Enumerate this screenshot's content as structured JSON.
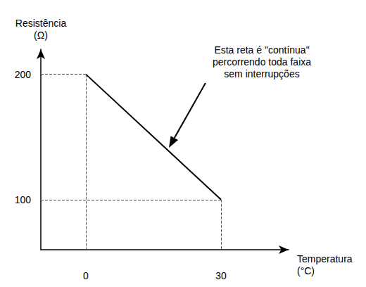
{
  "chart_data": {
    "type": "line",
    "x_label": "Temperatura\n(°C)",
    "y_label": "Resistência\n(Ω)",
    "x": [
      0,
      30
    ],
    "values": [
      200,
      100
    ],
    "color": "#000000",
    "xlim": [
      -10,
      45
    ],
    "ylim": [
      60,
      220
    ],
    "xticks": [
      0,
      30
    ],
    "yticks": [
      100,
      200
    ],
    "grid": false,
    "annotation": "Esta reta é \"contínua\"\npercorrendo toda faixa\nsem interrupções"
  }
}
